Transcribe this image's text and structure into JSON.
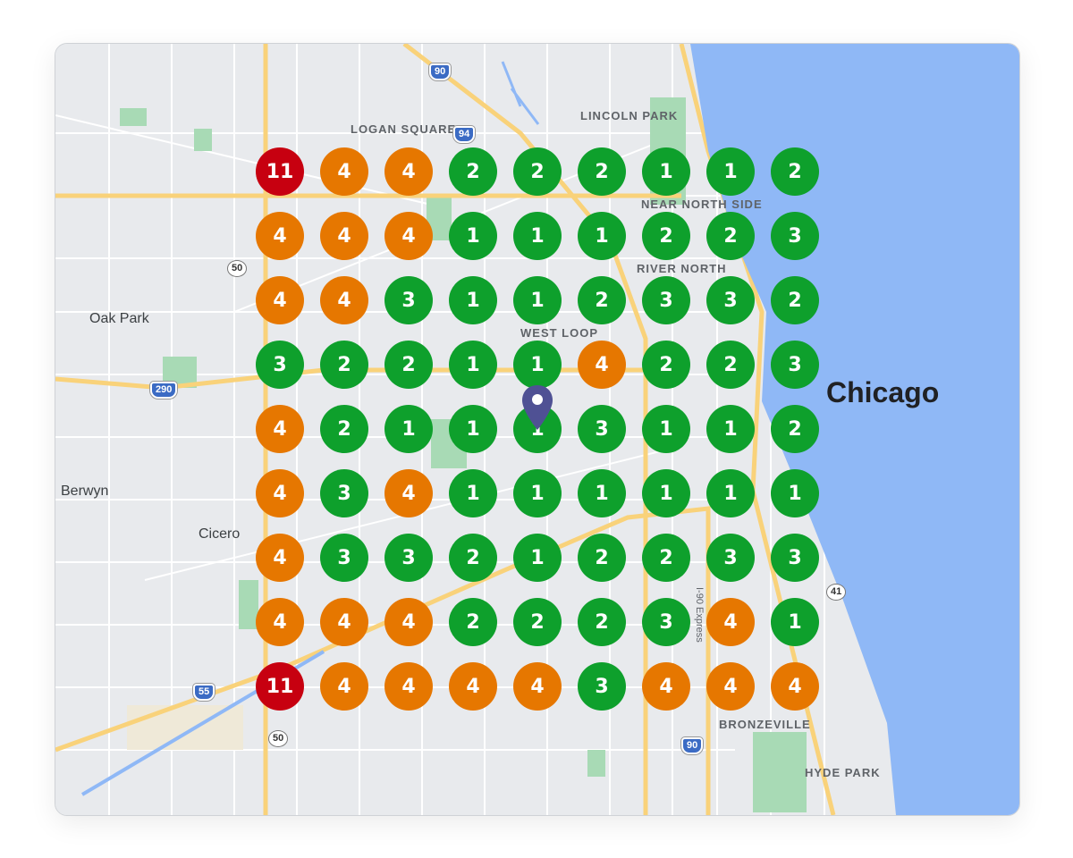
{
  "map": {
    "labels": {
      "logan_square": "LOGAN SQUARE",
      "lincoln_park": "LINCOLN PARK",
      "oak_park": "Oak Park",
      "berwyn": "Berwyn",
      "cicero": "Cicero",
      "chicago": "Chicago",
      "bronzeville": "BRONZEVILLE",
      "hyde_park": "HYDE PARK",
      "near_north": "NEAR NORTH SIDE",
      "river_north": "RIVER NORTH",
      "west_loop": "WEST LOOP",
      "i90_express": "I-90 Express"
    },
    "shields": {
      "i90_top": "90",
      "i94": "94",
      "us50_top": "50",
      "i290": "290",
      "i55": "55",
      "us50_bottom": "50",
      "i90_bottom": "90",
      "us41": "41"
    },
    "colors": {
      "water": "#8fb8f6",
      "land": "#e8eaed",
      "road": "#ffffff",
      "highway": "#f9d27a",
      "park": "#a8dab5",
      "pin": "#4f5194"
    }
  },
  "rank_grid": {
    "legend_colors": {
      "top3": "#0ea02c",
      "mid": "#e67700",
      "low": "#c70010"
    },
    "rows": [
      [
        11,
        4,
        4,
        2,
        2,
        2,
        1,
        1,
        2
      ],
      [
        4,
        4,
        4,
        1,
        1,
        1,
        2,
        2,
        3
      ],
      [
        4,
        4,
        3,
        1,
        1,
        2,
        3,
        3,
        2
      ],
      [
        3,
        2,
        2,
        1,
        1,
        4,
        2,
        2,
        3
      ],
      [
        4,
        2,
        1,
        1,
        1,
        3,
        1,
        1,
        2
      ],
      [
        4,
        3,
        4,
        1,
        1,
        1,
        1,
        1,
        1
      ],
      [
        4,
        3,
        3,
        2,
        1,
        2,
        2,
        3,
        3
      ],
      [
        4,
        4,
        4,
        2,
        2,
        2,
        3,
        4,
        1
      ],
      [
        11,
        4,
        4,
        4,
        4,
        3,
        4,
        4,
        4
      ]
    ]
  }
}
